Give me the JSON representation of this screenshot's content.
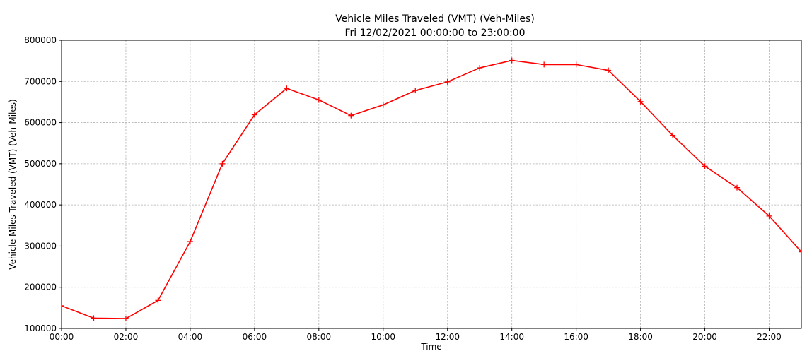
{
  "chart_data": {
    "type": "line",
    "title": "Vehicle Miles Traveled (VMT) (Veh-Miles)",
    "subtitle": "Fri 12/02/2021 00:00:00 to 23:00:00",
    "xlabel": "Time",
    "ylabel": "Vehicle Miles Traveled (VMT) (Veh-Miles)",
    "xlim": [
      0,
      23
    ],
    "ylim": [
      100000,
      800000
    ],
    "grid": true,
    "x_ticks": [
      0,
      2,
      4,
      6,
      8,
      10,
      12,
      14,
      16,
      18,
      20,
      22
    ],
    "x_tick_labels": [
      "00:00",
      "02:00",
      "04:00",
      "06:00",
      "08:00",
      "10:00",
      "12:00",
      "14:00",
      "16:00",
      "18:00",
      "20:00",
      "22:00"
    ],
    "y_ticks": [
      100000,
      200000,
      300000,
      400000,
      500000,
      600000,
      700000,
      800000
    ],
    "y_tick_labels": [
      "100000",
      "200000",
      "300000",
      "400000",
      "500000",
      "600000",
      "700000",
      "800000"
    ],
    "series": [
      {
        "color": "#ff0000",
        "marker": "+",
        "x": [
          0,
          1,
          2,
          3,
          4,
          5,
          6,
          7,
          8,
          9,
          10,
          11,
          12,
          13,
          14,
          15,
          16,
          17,
          18,
          19,
          20,
          21,
          22,
          23
        ],
        "values": [
          155000,
          125000,
          124000,
          168000,
          311000,
          500000,
          619000,
          683000,
          655000,
          617000,
          643000,
          678000,
          699000,
          733000,
          751000,
          741000,
          741000,
          727000,
          651000,
          569000,
          494000,
          442000,
          373000,
          286000
        ]
      }
    ]
  }
}
